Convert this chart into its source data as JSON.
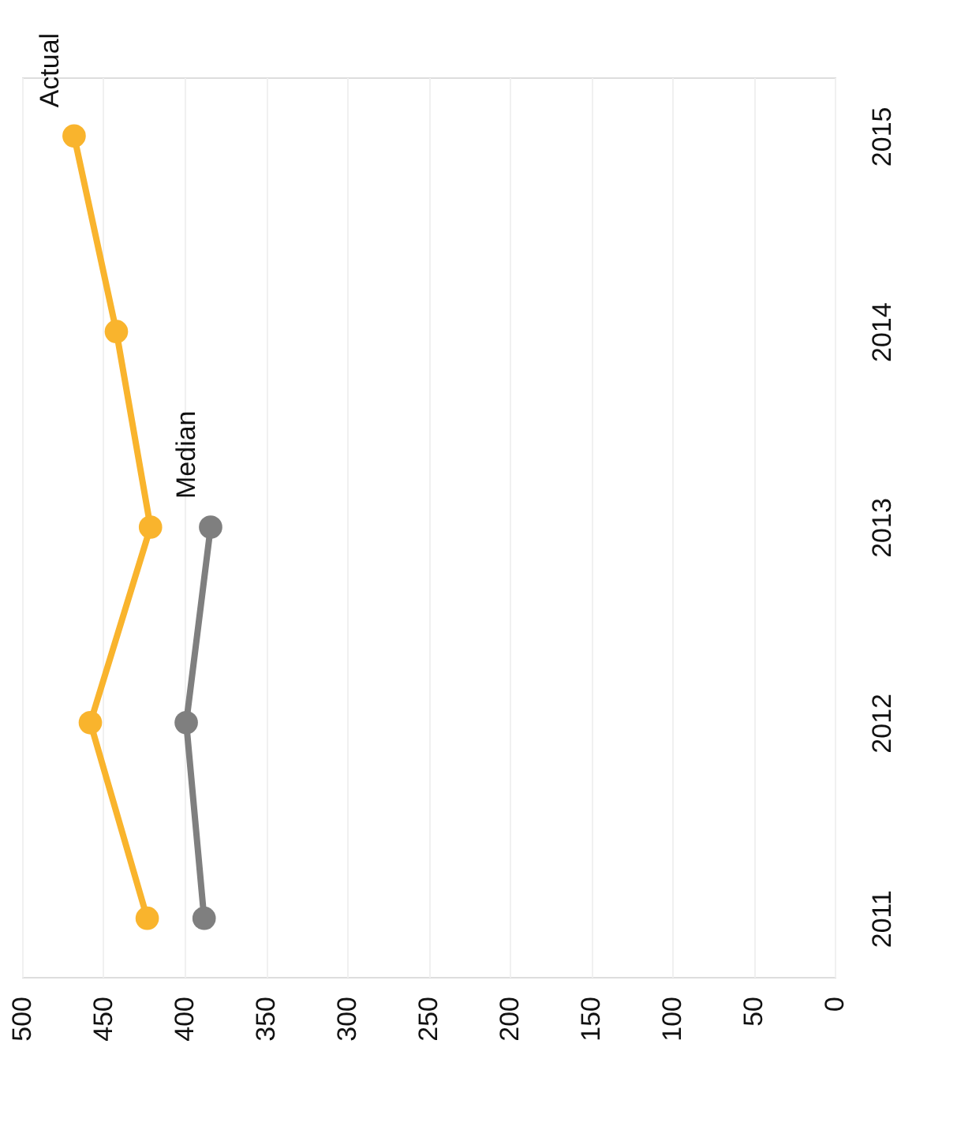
{
  "chart_data": {
    "type": "line",
    "orientation": "horizontal",
    "categories": [
      "2015",
      "2014",
      "2013",
      "2012",
      "2011"
    ],
    "series": [
      {
        "name": "Actual",
        "color": "#f9b42d",
        "values": [
          468,
          442,
          421,
          458,
          423
        ]
      },
      {
        "name": "Median",
        "color": "#7f7f7f",
        "values": [
          null,
          null,
          384,
          399,
          388
        ]
      }
    ],
    "xlim": [
      500,
      0
    ],
    "xticks": [
      500,
      450,
      400,
      350,
      300,
      250,
      200,
      150,
      100,
      50,
      0
    ],
    "grid": "x",
    "legend": false,
    "marker": "circle",
    "line_style": "solid"
  }
}
